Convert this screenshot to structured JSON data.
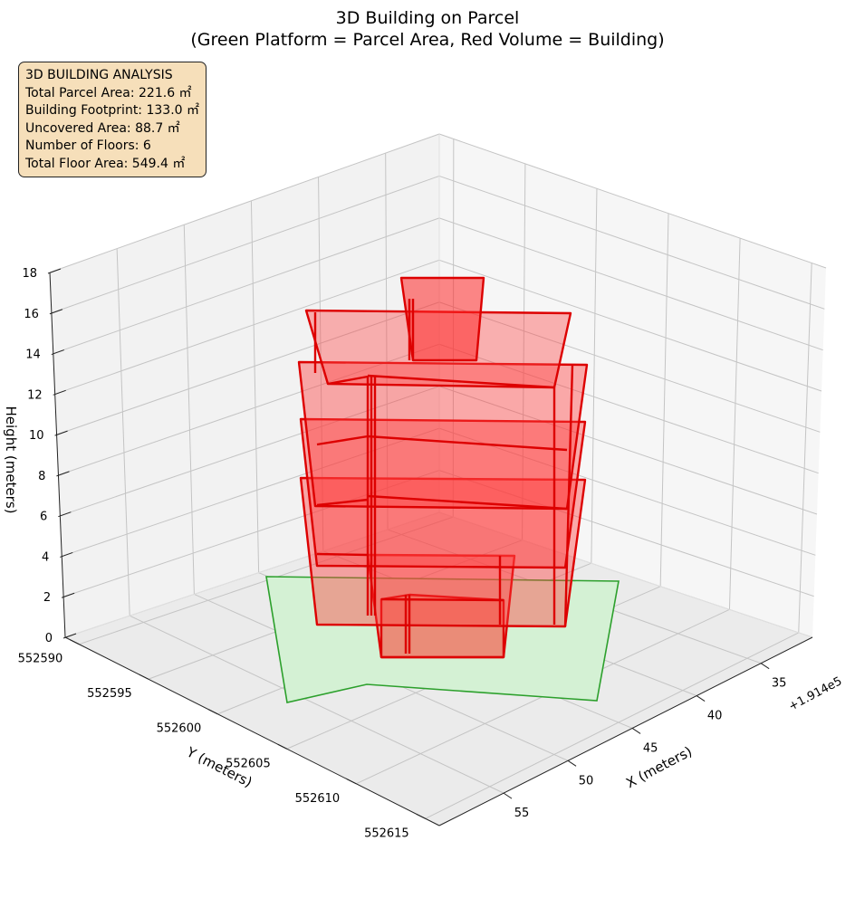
{
  "chart_data": {
    "type": "3d-extruded-polygon",
    "title": "3D Building on Parcel",
    "subtitle": "(Green Platform = Parcel Area, Red Volume = Building)",
    "xlabel": "X (meters)",
    "ylabel": "Y (meters)",
    "zlabel": "Height (meters)",
    "x_offset_label": "+1.914e5",
    "x_ticks": [
      35,
      40,
      45,
      50,
      55
    ],
    "y_ticks": [
      552590,
      552595,
      552600,
      552605,
      552610,
      552615
    ],
    "z_ticks": [
      0,
      2,
      4,
      6,
      8,
      10,
      12,
      14,
      16,
      18
    ],
    "xlim": [
      31,
      60
    ],
    "ylim": [
      552589,
      552616
    ],
    "zlim": [
      0,
      18
    ],
    "grid": true,
    "parcel_color": "#2ca02c",
    "parcel_fill": "#d4f1d4",
    "building_color": "#ff0000",
    "floor_height_m": 3,
    "floors": 6,
    "info_box": {
      "heading": "3D BUILDING ANALYSIS",
      "lines": [
        "Total Parcel Area: 221.6 ㎡",
        "Building Footprint: 133.0 ㎡",
        "Uncovered Area: 88.7 ㎡",
        "Number of Floors: 6",
        "Total Floor Area: 549.4 ㎡"
      ]
    }
  }
}
